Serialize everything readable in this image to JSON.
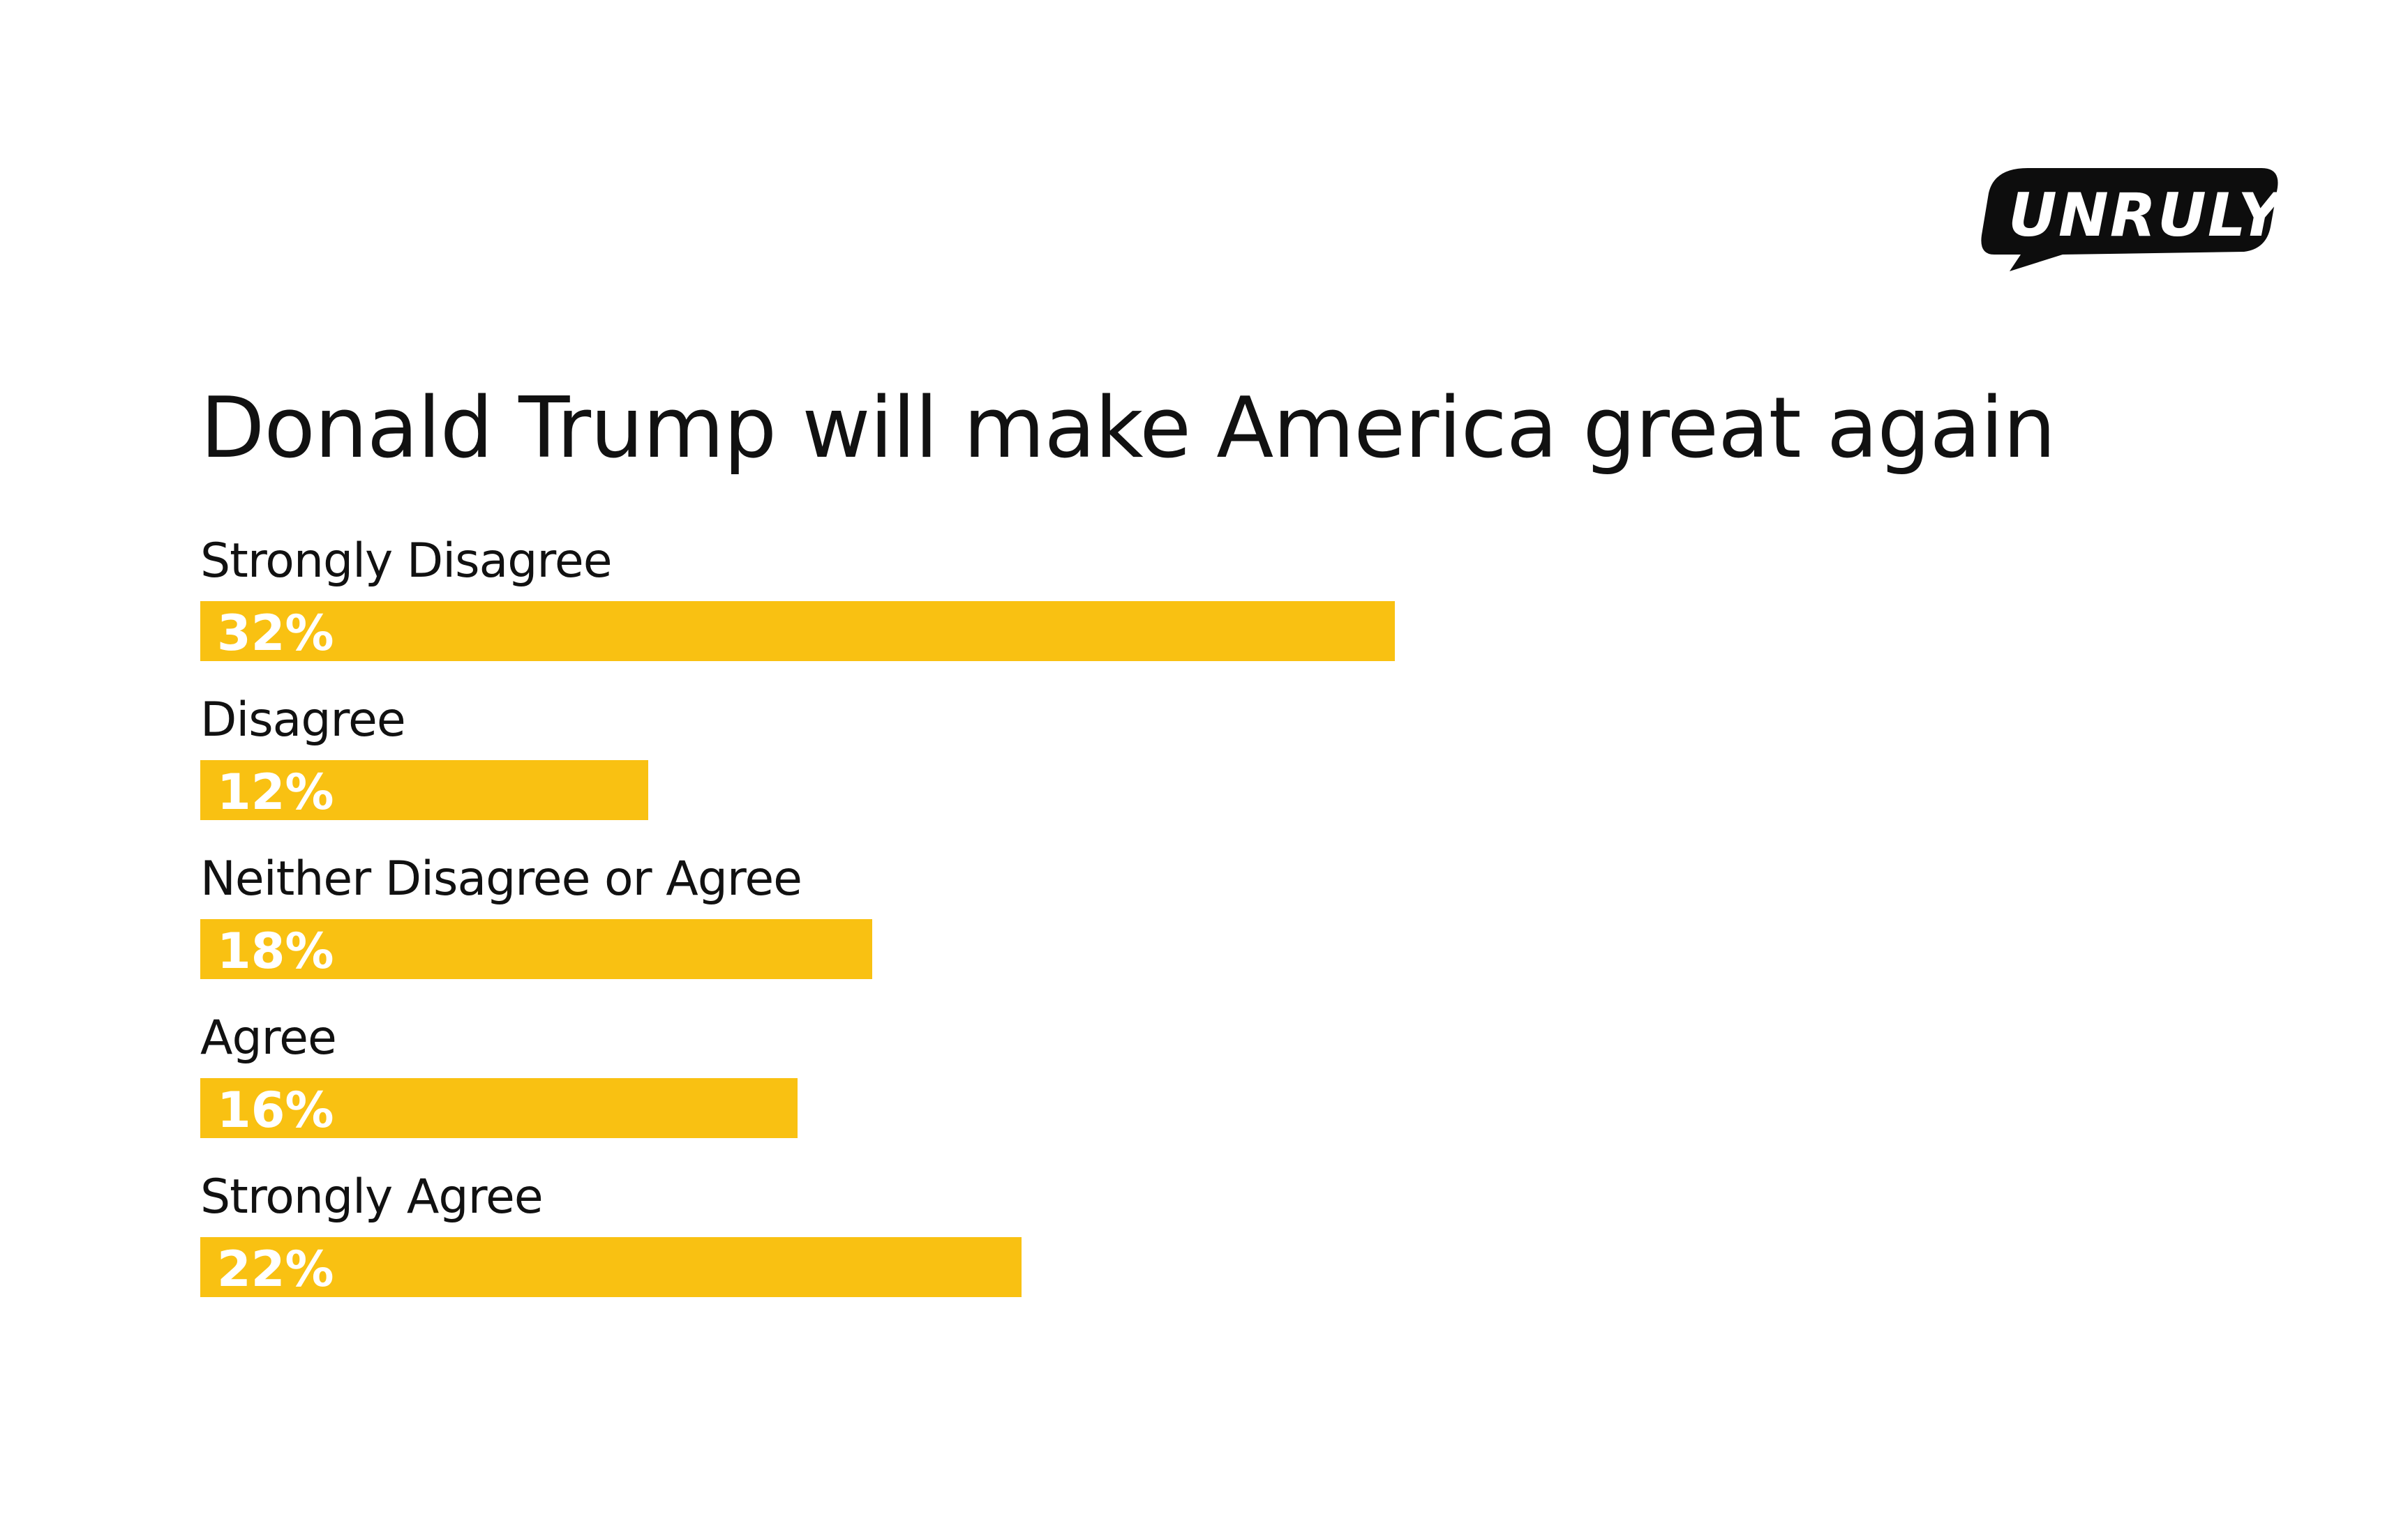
{
  "logo": {
    "text": "UNRULY",
    "color": "#0d0d0d",
    "text_color": "#ffffff"
  },
  "chart_data": {
    "type": "bar",
    "orientation": "horizontal",
    "title": "Donald Trump will make America great again",
    "categories": [
      "Strongly Disagree",
      "Disagree",
      "Neither Disagree or Agree",
      "Agree",
      "Strongly Agree"
    ],
    "values": [
      32,
      12,
      18,
      16,
      22
    ],
    "value_labels": [
      "32%",
      "12%",
      "18%",
      "16%",
      "22%"
    ],
    "unit": "%",
    "xlim": [
      0,
      32
    ],
    "grid": false,
    "legend": "none",
    "bar_color": "#f9c112",
    "label_color": "#ffffff"
  }
}
